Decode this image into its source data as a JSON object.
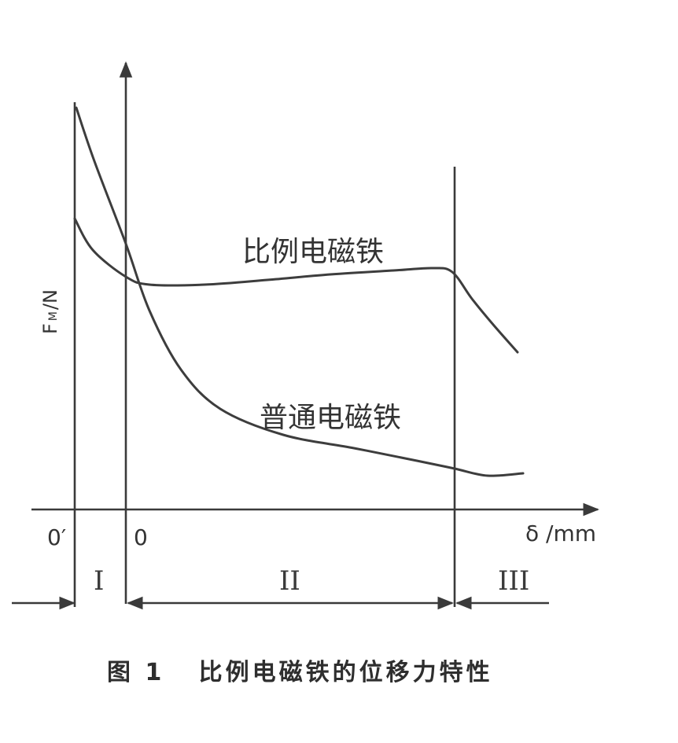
{
  "chart_data": {
    "type": "line",
    "title": "图 1   比例电磁铁的位移力特性",
    "xlabel": "δ /mm",
    "ylabel": "F_M/N",
    "ylabel_main": "F",
    "ylabel_sub": "M",
    "ylabel_unit": "/N",
    "x_origin_labels": [
      "0′",
      "0"
    ],
    "regions": [
      "I",
      "II",
      "III"
    ],
    "series": [
      {
        "name": "比例电磁铁",
        "points": [
          [
            95,
            278
          ],
          [
            118,
            318
          ],
          [
            160,
            352
          ],
          [
            190,
            362
          ],
          [
            260,
            362
          ],
          [
            340,
            356
          ],
          [
            420,
            349
          ],
          [
            500,
            344
          ],
          [
            550,
            341
          ],
          [
            575,
            346
          ],
          [
            600,
            380
          ],
          [
            628,
            414
          ],
          [
            658,
            448
          ]
        ]
      },
      {
        "name": "普通电磁铁",
        "points": [
          [
            97,
            137
          ],
          [
            120,
            205
          ],
          [
            160,
            310
          ],
          [
            190,
            395
          ],
          [
            230,
            470
          ],
          [
            280,
            520
          ],
          [
            360,
            553
          ],
          [
            450,
            570
          ],
          [
            530,
            586
          ],
          [
            578,
            596
          ],
          [
            620,
            605
          ],
          [
            665,
            602
          ]
        ]
      }
    ]
  }
}
